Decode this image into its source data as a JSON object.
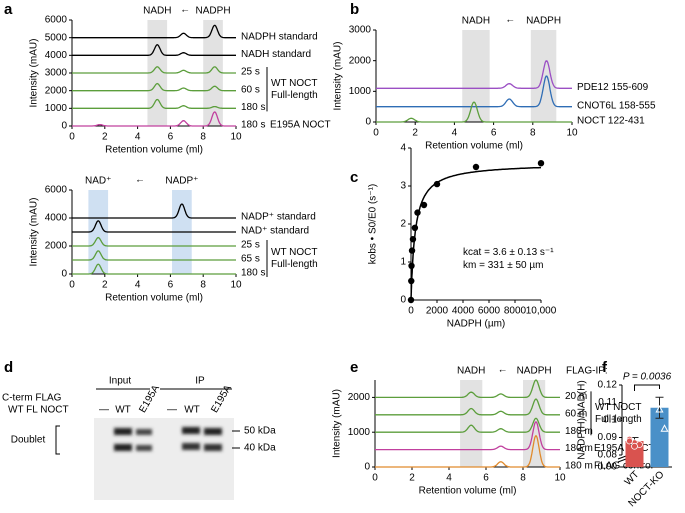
{
  "panel_labels": [
    "a",
    "b",
    "c",
    "d",
    "e",
    "f"
  ],
  "chart_data": [
    {
      "type": "chromatogram",
      "band_labels": [
        "NADH",
        "NADPH"
      ],
      "arrow": "←",
      "bands": [
        [
          4.6,
          5.8
        ],
        [
          8.0,
          9.2
        ]
      ],
      "band_color": "#e2e2e2",
      "xlabel": "Retention volume (ml)",
      "ylabel": "Intensity (mAU)",
      "xlim": [
        0,
        10
      ],
      "xticks": [
        0,
        2,
        4,
        6,
        8,
        10
      ],
      "ylim": [
        0,
        6000
      ],
      "yticks": [
        0,
        1000,
        2000,
        3000,
        4000,
        5000,
        6000
      ],
      "series": [
        {
          "name": "NADPH standard",
          "color": "#000000",
          "baseline": 5000,
          "peaks": [
            [
              6.8,
              250
            ],
            [
              8.7,
              700
            ]
          ]
        },
        {
          "name": "NADH standard",
          "color": "#000000",
          "baseline": 4000,
          "peaks": [
            [
              5.2,
              600
            ],
            [
              6.8,
              150
            ]
          ]
        },
        {
          "name": "25 s",
          "color": "#5c9e3c",
          "baseline": 3000,
          "peaks": [
            [
              5.2,
              350
            ],
            [
              6.8,
              150
            ],
            [
              8.7,
              350
            ]
          ]
        },
        {
          "name": "60 s",
          "color": "#5c9e3c",
          "baseline": 2000,
          "peaks": [
            [
              5.2,
              400
            ],
            [
              6.8,
              150
            ],
            [
              8.7,
              250
            ]
          ]
        },
        {
          "name": "180 s",
          "color": "#5c9e3c",
          "baseline": 1000,
          "peaks": [
            [
              5.2,
              500
            ],
            [
              6.8,
              150
            ],
            [
              8.7,
              100
            ]
          ]
        },
        {
          "name": "180 s",
          "note": "E195A NOCT",
          "color": "#c1409e",
          "baseline": 0,
          "peaks": [
            [
              1.7,
              80
            ],
            [
              6.8,
              300
            ],
            [
              8.7,
              800
            ]
          ]
        }
      ],
      "groups": [
        {
          "lines": [
            "WT NOCT",
            "Full-length"
          ],
          "series": [
            2,
            3,
            4
          ]
        }
      ]
    },
    {
      "type": "chromatogram",
      "band_labels": [
        "NAD⁺",
        "NADP⁺"
      ],
      "arrow": "←",
      "bands": [
        [
          1.0,
          2.2
        ],
        [
          6.1,
          7.3
        ]
      ],
      "band_color": "#cfe0f2",
      "xlabel": "Retention volume (ml)",
      "ylabel": "Intensity (mAU)",
      "xlim": [
        0,
        10
      ],
      "xticks": [
        0,
        2,
        4,
        6,
        8,
        10
      ],
      "ylim": [
        0,
        6000
      ],
      "yticks": [
        0,
        2000,
        4000,
        6000
      ],
      "series": [
        {
          "name": "NADP⁺ standard",
          "color": "#000000",
          "baseline": 4000,
          "peaks": [
            [
              6.7,
              1000
            ]
          ]
        },
        {
          "name": "NAD⁺ standard",
          "color": "#000000",
          "baseline": 3000,
          "peaks": [
            [
              1.6,
              800
            ]
          ]
        },
        {
          "name": "25 s",
          "color": "#5c9e3c",
          "baseline": 2000,
          "peaks": [
            [
              1.6,
              600
            ]
          ]
        },
        {
          "name": "65 s",
          "color": "#5c9e3c",
          "baseline": 1000,
          "peaks": [
            [
              1.6,
              650
            ]
          ]
        },
        {
          "name": "180 s",
          "color": "#5c9e3c",
          "baseline": 0,
          "peaks": [
            [
              1.6,
              700
            ]
          ]
        }
      ],
      "groups": [
        {
          "lines": [
            "WT NOCT",
            "Full-length"
          ],
          "series": [
            2,
            3,
            4
          ]
        }
      ]
    },
    {
      "type": "chromatogram",
      "band_labels": [
        "NADH",
        "NADPH"
      ],
      "arrow": "←",
      "bands": [
        [
          4.4,
          5.8
        ],
        [
          7.9,
          9.2
        ]
      ],
      "band_color": "#e2e2e2",
      "xlabel": "Retention volume (ml)",
      "ylabel": "Intensity (mAU)",
      "xlim": [
        0,
        10
      ],
      "xticks": [
        0,
        2,
        4,
        6,
        8,
        10
      ],
      "ylim": [
        0,
        3000
      ],
      "yticks": [
        0,
        1000,
        2000,
        3000
      ],
      "series": [
        {
          "name": "PDE12 155-609",
          "color": "#9b4fc4",
          "baseline": 1100,
          "peaks": [
            [
              6.8,
              150
            ],
            [
              8.7,
              900
            ]
          ]
        },
        {
          "name": "CNOT6L 158-555",
          "color": "#2f6db5",
          "baseline": 500,
          "peaks": [
            [
              6.8,
              250
            ],
            [
              8.7,
              1000
            ]
          ]
        },
        {
          "name": "NOCT 122-431",
          "color": "#5c9e3c",
          "baseline": 0,
          "peaks": [
            [
              1.8,
              120
            ],
            [
              5.0,
              650
            ]
          ]
        }
      ]
    },
    {
      "type": "scatter",
      "xlabel": "NADPH (µm)",
      "ylabel": "kobs • S0/E0 (s⁻¹)",
      "xlim": [
        0,
        10000
      ],
      "xticks": [
        0,
        2000,
        4000,
        6000,
        8000,
        {
          "value": 10000,
          "label": "10,000"
        }
      ],
      "ylim": [
        0,
        4
      ],
      "yticks": [
        0,
        1,
        2,
        3,
        4
      ],
      "x": [
        0,
        20,
        40,
        80,
        150,
        300,
        500,
        1000,
        2000,
        5000,
        10000
      ],
      "values": [
        0,
        0.5,
        0.9,
        1.3,
        1.6,
        1.9,
        2.3,
        2.5,
        3.05,
        3.5,
        3.6
      ],
      "fit": {
        "kcat": 3.6,
        "km": 331
      },
      "annotations": [
        "kcat = 3.6 ± 0.13 s⁻¹",
        "km = 331 ± 50 µm"
      ]
    },
    {
      "type": "chromatogram",
      "band_labels": [
        "NADH",
        "NADPH"
      ],
      "arrow": "←",
      "bands": [
        [
          4.6,
          5.8
        ],
        [
          8.0,
          9.2
        ]
      ],
      "band_color": "#e2e2e2",
      "header": "FLAG-IP:",
      "xlabel": "Retention volume (ml)",
      "ylabel": "Intensity (mAU)",
      "xlim": [
        0,
        10
      ],
      "xticks": [
        0,
        2,
        4,
        6,
        8,
        10
      ],
      "ylim": [
        0,
        2500
      ],
      "yticks": [
        0,
        1000,
        2000
      ],
      "series": [
        {
          "name": "20 m",
          "color": "#5c9e3c",
          "baseline": 2000,
          "peaks": [
            [
              5.2,
              150
            ],
            [
              6.8,
              100
            ],
            [
              8.7,
              500
            ]
          ]
        },
        {
          "name": "60 m",
          "color": "#5c9e3c",
          "baseline": 1500,
          "peaks": [
            [
              5.2,
              180
            ],
            [
              6.8,
              100
            ],
            [
              8.7,
              450
            ]
          ]
        },
        {
          "name": "180 m",
          "color": "#5c9e3c",
          "baseline": 1000,
          "peaks": [
            [
              5.2,
              200
            ],
            [
              6.8,
              100
            ],
            [
              8.7,
              400
            ]
          ]
        },
        {
          "name": "180 m",
          "note": "E195A NOCT",
          "color": "#c1409e",
          "baseline": 500,
          "peaks": [
            [
              6.8,
              100
            ],
            [
              8.7,
              800
            ]
          ]
        },
        {
          "name": "180 m",
          "note": "FLAG control",
          "color": "#e08a2c",
          "baseline": 0,
          "peaks": [
            [
              6.8,
              150
            ],
            [
              8.7,
              900
            ]
          ]
        }
      ],
      "groups": [
        {
          "lines": [
            "WT NOCT",
            "Full-length"
          ],
          "series": [
            0,
            1,
            2
          ]
        }
      ]
    },
    {
      "type": "bar",
      "ylabel": "NADP(H)/NAD(H)",
      "categories": [
        "WT",
        "NOCT-KO"
      ],
      "colors": [
        "#d9534f",
        "#4a90c8"
      ],
      "values": [
        0.088,
        0.107
      ],
      "errors": [
        0.002,
        0.006
      ],
      "points": [
        [
          0.089,
          0.087,
          0.086,
          0.088,
          0.085
        ],
        [
          0.118,
          0.106,
          0.095
        ]
      ],
      "ylim": [
        0.08,
        0.12
      ],
      "yticks": [
        {
          "value": 0,
          "label": "0.00"
        },
        0.08,
        0.09,
        0.1,
        0.11,
        0.12
      ],
      "annotation": "P = 0.0036"
    }
  ],
  "gel": {
    "input": "Input",
    "ip": "IP",
    "row1": "C-term FLAG",
    "row2": "WT FL NOCT",
    "lanes": [
      "—",
      "WT",
      "E195A",
      "—",
      "WT",
      "E195A"
    ],
    "doublet": "Doublet",
    "markers": [
      "50 kDa",
      "40 kDa"
    ]
  }
}
